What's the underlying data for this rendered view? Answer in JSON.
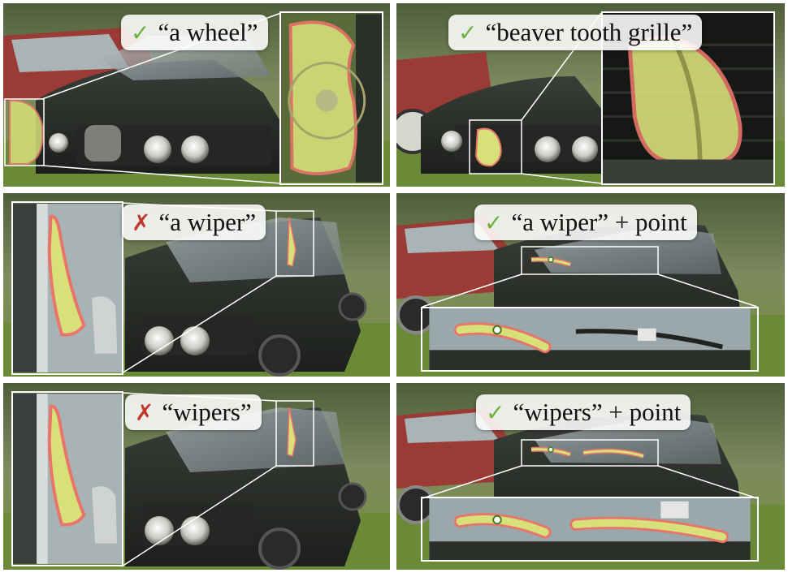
{
  "panels": [
    {
      "mark": "✓",
      "mark_kind": "ok",
      "label": "“a wheel”"
    },
    {
      "mark": "✓",
      "mark_kind": "ok",
      "label": "“beaver tooth grille”"
    },
    {
      "mark": "✗",
      "mark_kind": "bad",
      "label": "“a wiper”"
    },
    {
      "mark": "✓",
      "mark_kind": "ok",
      "label": "“a wiper” + point"
    },
    {
      "mark": "✗",
      "mark_kind": "bad",
      "label": "“wipers”"
    },
    {
      "mark": "✓",
      "mark_kind": "ok",
      "label": "“wipers” + point"
    }
  ],
  "colors": {
    "mask_fill": "#d8e07a",
    "mask_outline": "#e8746a",
    "car_body": "#2b2f2a",
    "red_car": "#9b3b35",
    "grass": "#6f8a3a"
  }
}
